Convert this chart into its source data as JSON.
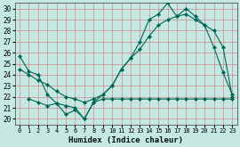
{
  "xlabel": "Humidex (Indice chaleur)",
  "bg_color": "#c5e8e3",
  "grid_color": "#cc8888",
  "line_color": "#006655",
  "xlim": [
    -0.5,
    23.5
  ],
  "ylim": [
    19.5,
    30.5
  ],
  "yticks": [
    20,
    21,
    22,
    23,
    24,
    25,
    26,
    27,
    28,
    29,
    30
  ],
  "xticks": [
    0,
    1,
    2,
    3,
    4,
    5,
    6,
    7,
    8,
    9,
    10,
    11,
    12,
    13,
    14,
    15,
    16,
    17,
    18,
    19,
    20,
    21,
    22,
    23
  ],
  "line1_x": [
    0,
    1,
    2,
    3,
    4,
    5,
    6,
    7,
    8,
    9,
    10,
    11,
    12,
    13,
    14,
    15,
    16,
    17,
    18,
    19,
    20,
    21,
    22,
    23
  ],
  "line1_y": [
    25.7,
    24.3,
    24.0,
    22.2,
    21.4,
    20.4,
    20.8,
    20.0,
    21.5,
    22.2,
    23.0,
    24.5,
    25.5,
    27.0,
    29.0,
    29.5,
    30.5,
    29.3,
    30.0,
    29.3,
    28.5,
    26.5,
    24.2,
    22.2
  ],
  "line2_x": [
    0,
    1,
    2,
    3,
    4,
    5,
    6,
    7,
    8,
    9,
    10,
    11,
    12,
    13,
    14,
    15,
    16,
    17,
    18,
    19,
    20,
    21,
    22,
    23
  ],
  "line2_y": [
    24.5,
    24.0,
    23.5,
    23.1,
    22.5,
    22.0,
    21.8,
    21.5,
    21.8,
    22.2,
    23.0,
    24.5,
    25.5,
    26.3,
    27.5,
    28.5,
    29.0,
    29.3,
    29.5,
    29.0,
    28.5,
    28.0,
    26.5,
    22.0
  ],
  "line3_x": [
    1,
    2,
    3,
    4,
    5,
    6,
    7,
    8,
    9,
    10,
    11,
    12,
    13,
    14,
    15,
    16,
    17,
    18,
    19,
    20,
    21,
    22,
    23
  ],
  "line3_y": [
    21.8,
    21.5,
    21.2,
    21.4,
    21.2,
    21.0,
    20.0,
    21.5,
    21.8,
    21.8,
    21.8,
    21.8,
    21.8,
    21.8,
    21.8,
    21.8,
    21.8,
    21.8,
    21.8,
    21.8,
    21.8,
    21.8,
    21.8
  ]
}
